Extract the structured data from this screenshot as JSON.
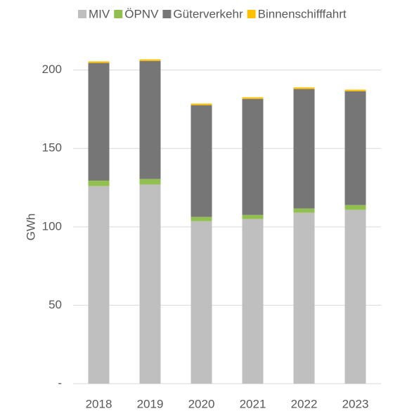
{
  "chart_data": {
    "type": "stacked_bar",
    "y_label": "GWh",
    "categories": [
      "2018",
      "2019",
      "2020",
      "2021",
      "2022",
      "2023"
    ],
    "series": [
      {
        "name": "MIV",
        "color": "#bfbfbf",
        "values": [
          126,
          127,
          103.6,
          105,
          109,
          110.8
        ]
      },
      {
        "name": "ÖPNV",
        "color": "#92c050",
        "values": [
          3.5,
          3.5,
          2.7,
          2.6,
          2.7,
          3.1
        ]
      },
      {
        "name": "Güterverkehr",
        "color": "#767676",
        "values": [
          75,
          75.3,
          71.3,
          74,
          76.2,
          72.6
        ]
      },
      {
        "name": "Binnenschifffahrt",
        "color": "#ffc000",
        "values": [
          1,
          1,
          1,
          1,
          1,
          1
        ]
      }
    ],
    "ylim": [
      0,
      220
    ],
    "yticks": [
      {
        "value": 0,
        "label": "-"
      },
      50,
      100,
      150,
      200
    ],
    "grid": true,
    "legend": "top"
  }
}
